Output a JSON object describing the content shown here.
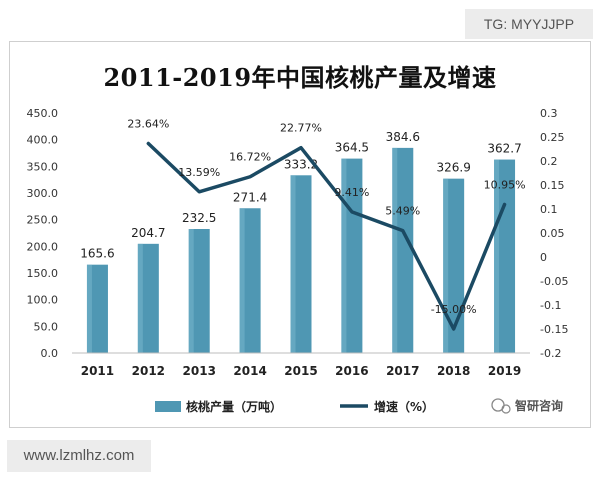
{
  "overlay": {
    "top_right_tag": "TG: MYYJJPP",
    "bottom_left_url": "www.lzmlhz.com"
  },
  "watermark": "智研咨询",
  "colors": {
    "bar": "#4f97b3",
    "bar_highlight": "#79b6cc",
    "line": "#1b4a63",
    "axis_text": "#333333"
  },
  "chart_data": {
    "type": "bar",
    "title": "2011-2019年中国核桃产量及增速",
    "categories": [
      "2011",
      "2012",
      "2013",
      "2014",
      "2015",
      "2016",
      "2017",
      "2018",
      "2019"
    ],
    "series": [
      {
        "name": "核桃产量（万吨）",
        "type": "bar",
        "axis": "left",
        "values": [
          165.6,
          204.7,
          232.5,
          271.4,
          333.2,
          364.5,
          384.6,
          326.9,
          362.7
        ],
        "labels": [
          "165.6",
          "204.7",
          "232.5",
          "271.4",
          "333.2",
          "364.5",
          "384.6",
          "326.9",
          "362.7"
        ]
      },
      {
        "name": "增速（%）",
        "type": "line",
        "axis": "right",
        "values": [
          null,
          0.2364,
          0.1359,
          0.1672,
          0.2277,
          0.0941,
          0.0549,
          -0.15,
          0.1095
        ],
        "labels": [
          "",
          "23.64%",
          "13.59%",
          "16.72%",
          "22.77%",
          "9.41%",
          "5.49%",
          "-15.00%",
          "10.95%"
        ]
      }
    ],
    "y_left": {
      "min": 0,
      "max": 450,
      "step": 50,
      "ticks": [
        "0.0",
        "50.0",
        "100.0",
        "150.0",
        "200.0",
        "250.0",
        "300.0",
        "350.0",
        "400.0",
        "450.0"
      ]
    },
    "y_right": {
      "min": -0.2,
      "max": 0.3,
      "step": 0.05,
      "ticks": [
        "-0.2",
        "-0.15",
        "-0.1",
        "-0.05",
        "0",
        "0.05",
        "0.1",
        "0.15",
        "0.2",
        "0.25",
        "0.3"
      ]
    },
    "legend_position": "bottom",
    "grid": false
  }
}
